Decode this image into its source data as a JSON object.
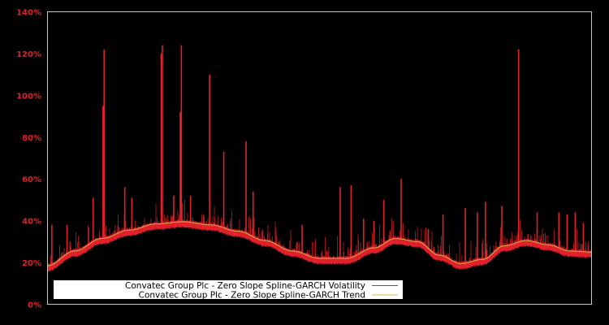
{
  "chart_data": {
    "type": "line",
    "title": "",
    "xlabel": "",
    "ylabel": "",
    "ylim": [
      0,
      140
    ],
    "y_ticks": [
      "0%",
      "20%",
      "40%",
      "60%",
      "80%",
      "100%",
      "120%",
      "140%"
    ],
    "y_tick_values": [
      0,
      20,
      40,
      60,
      80,
      100,
      120,
      140
    ],
    "grid": false,
    "legend_position": "lower left",
    "colors": {
      "background": "#000000",
      "frame": "#c8c8c8",
      "tick_text": "#e0202a",
      "volatility": "#e0202a",
      "trend": "#d4b24a",
      "legend_bg": "#ffffff"
    },
    "series": [
      {
        "name": "Convatec Group Plc - Zero Slope Spline-GARCH Volatility",
        "color": "#e0202a",
        "baseline_points_x_frac": [
          0.0,
          0.05,
          0.1,
          0.15,
          0.2,
          0.25,
          0.3,
          0.35,
          0.4,
          0.45,
          0.5,
          0.55,
          0.6,
          0.65,
          0.7,
          0.75,
          0.8,
          0.85,
          0.9,
          0.95,
          1.0
        ],
        "spikes": [
          {
            "x_frac": 0.104,
            "value": 122
          },
          {
            "x_frac": 0.102,
            "value": 95
          },
          {
            "x_frac": 0.211,
            "value": 124
          },
          {
            "x_frac": 0.209,
            "value": 120
          },
          {
            "x_frac": 0.246,
            "value": 124
          },
          {
            "x_frac": 0.244,
            "value": 92
          },
          {
            "x_frac": 0.298,
            "value": 110
          },
          {
            "x_frac": 0.324,
            "value": 73
          },
          {
            "x_frac": 0.365,
            "value": 78
          },
          {
            "x_frac": 0.378,
            "value": 54
          },
          {
            "x_frac": 0.084,
            "value": 51
          },
          {
            "x_frac": 0.142,
            "value": 56
          },
          {
            "x_frac": 0.155,
            "value": 51
          },
          {
            "x_frac": 0.232,
            "value": 52
          },
          {
            "x_frac": 0.263,
            "value": 52
          },
          {
            "x_frac": 0.558,
            "value": 57
          },
          {
            "x_frac": 0.538,
            "value": 56
          },
          {
            "x_frac": 0.618,
            "value": 50
          },
          {
            "x_frac": 0.65,
            "value": 60
          },
          {
            "x_frac": 0.727,
            "value": 43
          },
          {
            "x_frac": 0.768,
            "value": 46
          },
          {
            "x_frac": 0.79,
            "value": 44
          },
          {
            "x_frac": 0.805,
            "value": 49
          },
          {
            "x_frac": 0.835,
            "value": 47
          },
          {
            "x_frac": 0.866,
            "value": 122
          },
          {
            "x_frac": 0.9,
            "value": 44
          },
          {
            "x_frac": 0.94,
            "value": 44
          },
          {
            "x_frac": 0.955,
            "value": 43
          },
          {
            "x_frac": 0.97,
            "value": 44
          },
          {
            "x_frac": 0.008,
            "value": 38
          },
          {
            "x_frac": 0.036,
            "value": 38
          },
          {
            "x_frac": 0.468,
            "value": 38
          },
          {
            "x_frac": 0.581,
            "value": 41
          },
          {
            "x_frac": 0.6,
            "value": 40
          },
          {
            "x_frac": 0.7,
            "value": 36
          },
          {
            "x_frac": 0.985,
            "value": 39
          }
        ]
      },
      {
        "name": "Convatec Group Plc - Zero Slope Spline-GARCH Trend",
        "color": "#d4b24a",
        "points": [
          {
            "x_frac": 0.0,
            "value": 18.5
          },
          {
            "x_frac": 0.05,
            "value": 25.5
          },
          {
            "x_frac": 0.1,
            "value": 31.5
          },
          {
            "x_frac": 0.15,
            "value": 35.5
          },
          {
            "x_frac": 0.2,
            "value": 38.5
          },
          {
            "x_frac": 0.25,
            "value": 39.5
          },
          {
            "x_frac": 0.3,
            "value": 38.0
          },
          {
            "x_frac": 0.35,
            "value": 35.0
          },
          {
            "x_frac": 0.4,
            "value": 30.5
          },
          {
            "x_frac": 0.45,
            "value": 25.5
          },
          {
            "x_frac": 0.5,
            "value": 22.0
          },
          {
            "x_frac": 0.55,
            "value": 22.0
          },
          {
            "x_frac": 0.6,
            "value": 27.0
          },
          {
            "x_frac": 0.64,
            "value": 31.5
          },
          {
            "x_frac": 0.68,
            "value": 30.0
          },
          {
            "x_frac": 0.72,
            "value": 23.5
          },
          {
            "x_frac": 0.76,
            "value": 19.5
          },
          {
            "x_frac": 0.8,
            "value": 21.5
          },
          {
            "x_frac": 0.84,
            "value": 28.0
          },
          {
            "x_frac": 0.88,
            "value": 30.5
          },
          {
            "x_frac": 0.92,
            "value": 28.5
          },
          {
            "x_frac": 0.96,
            "value": 25.5
          },
          {
            "x_frac": 1.0,
            "value": 25.0
          }
        ]
      }
    ],
    "legend": [
      {
        "label": "Convatec Group Plc - Zero Slope Spline-GARCH Volatility",
        "color": "#e0202a"
      },
      {
        "label": "Convatec Group Plc - Zero Slope Spline-GARCH Trend",
        "color": "#d4b24a"
      }
    ]
  }
}
